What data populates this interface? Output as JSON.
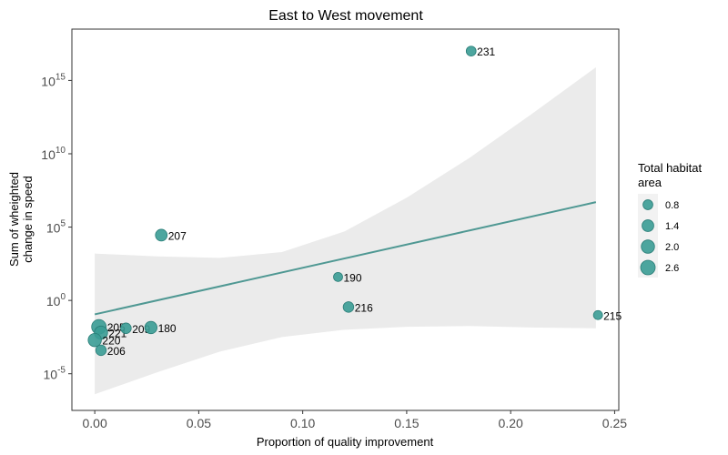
{
  "chart_data": {
    "type": "scatter",
    "title": "East to West movement",
    "xlabel": "Proportion of quality improvement",
    "ylabel": [
      "Sum of wheighted",
      "change in speed"
    ],
    "xlim": [
      -0.011,
      0.252
    ],
    "ylim_log10": [
      -7.5,
      18.5
    ],
    "y_scale": "log10",
    "x_ticks": [
      {
        "value": 0.0,
        "label": "0.00"
      },
      {
        "value": 0.05,
        "label": "0.05"
      },
      {
        "value": 0.1,
        "label": "0.10"
      },
      {
        "value": 0.15,
        "label": "0.15"
      },
      {
        "value": 0.2,
        "label": "0.20"
      },
      {
        "value": 0.25,
        "label": "0.25"
      }
    ],
    "y_ticks": [
      {
        "exponent": 15,
        "base": "10",
        "exp": "15"
      },
      {
        "exponent": 10,
        "base": "10",
        "exp": "10"
      },
      {
        "exponent": 5,
        "base": "10",
        "exp": "5"
      },
      {
        "exponent": 0,
        "base": "10",
        "exp": "0"
      },
      {
        "exponent": -5,
        "base": "10",
        "exp": "-5"
      }
    ],
    "points": [
      {
        "label": "231",
        "x": 0.181,
        "log10y": 17.0,
        "area": 0.8
      },
      {
        "label": "207",
        "x": 0.032,
        "log10y": 4.45,
        "area": 1.4
      },
      {
        "label": "190",
        "x": 0.117,
        "log10y": 1.6,
        "area": 0.6
      },
      {
        "label": "216",
        "x": 0.122,
        "log10y": -0.45,
        "area": 1.0
      },
      {
        "label": "215",
        "x": 0.242,
        "log10y": -1.0,
        "area": 0.6
      },
      {
        "label": "205",
        "x": 0.002,
        "log10y": -1.8,
        "area": 2.6
      },
      {
        "label": "221",
        "x": 0.003,
        "log10y": -2.2,
        "area": 2.0
      },
      {
        "label": "209",
        "x": 0.015,
        "log10y": -1.9,
        "area": 1.0
      },
      {
        "label": "180",
        "x": 0.027,
        "log10y": -1.85,
        "area": 1.6
      },
      {
        "label": "220",
        "x": 0.0,
        "log10y": -2.7,
        "area": 2.0
      },
      {
        "label": "206",
        "x": 0.003,
        "log10y": -3.4,
        "area": 1.0
      }
    ],
    "trend": {
      "x_start": 0.0,
      "log10y_start": -0.95,
      "x_end": 0.241,
      "log10y_end": 6.7
    },
    "band": {
      "upper": [
        [
          0.0,
          3.2
        ],
        [
          0.03,
          3.0
        ],
        [
          0.06,
          2.9
        ],
        [
          0.09,
          3.3
        ],
        [
          0.12,
          4.7
        ],
        [
          0.15,
          7.0
        ],
        [
          0.18,
          9.7
        ],
        [
          0.21,
          12.7
        ],
        [
          0.241,
          15.9
        ]
      ],
      "lower": [
        [
          0.241,
          -1.9
        ],
        [
          0.21,
          -1.85
        ],
        [
          0.18,
          -1.75
        ],
        [
          0.15,
          -1.8
        ],
        [
          0.12,
          -2.0
        ],
        [
          0.09,
          -2.5
        ],
        [
          0.06,
          -3.5
        ],
        [
          0.03,
          -4.9
        ],
        [
          0.0,
          -6.4
        ]
      ]
    },
    "legend": {
      "title": [
        "Total habitat",
        "area"
      ],
      "placement": "right",
      "items": [
        {
          "label": "0.8",
          "area": 0.8
        },
        {
          "label": "1.4",
          "area": 1.4
        },
        {
          "label": "2.0",
          "area": 2.0
        },
        {
          "label": "2.6",
          "area": 2.6
        }
      ]
    },
    "colors": {
      "point_fill": "#3a9c95",
      "point_stroke": "#2a7d77",
      "trend_line": "#4f9893",
      "band_fill": "#ebebeb",
      "panel_border": "#333333",
      "tick_color": "#333333"
    }
  }
}
